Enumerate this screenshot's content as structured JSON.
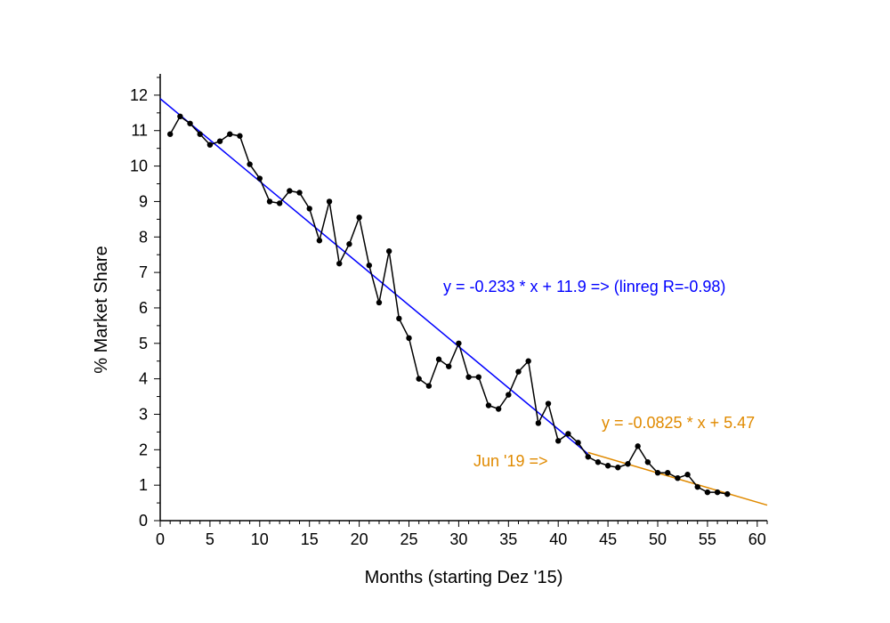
{
  "chart_data": {
    "type": "line",
    "title": "",
    "xlabel": "Months (starting Dez '15)",
    "ylabel": "% Market Share",
    "xlim": [
      0,
      61
    ],
    "ylim": [
      0,
      12.6
    ],
    "grid": false,
    "x_ticks": [
      0,
      5,
      10,
      15,
      20,
      25,
      30,
      35,
      40,
      45,
      50,
      55,
      60
    ],
    "y_ticks": [
      0,
      1,
      2,
      3,
      4,
      5,
      6,
      7,
      8,
      9,
      10,
      11,
      12
    ],
    "series": [
      {
        "name": "Market Share",
        "color": "#000000",
        "x": [
          1,
          2,
          3,
          4,
          5,
          6,
          7,
          8,
          9,
          10,
          11,
          12,
          13,
          14,
          15,
          16,
          17,
          18,
          19,
          20,
          21,
          22,
          23,
          24,
          25,
          26,
          27,
          28,
          29,
          30,
          31,
          32,
          33,
          34,
          35,
          36,
          37,
          38,
          39,
          40,
          41,
          42,
          43,
          44,
          45,
          46,
          47,
          48,
          49,
          50,
          51,
          52,
          53,
          54,
          55,
          56,
          57
        ],
        "values": [
          10.9,
          11.4,
          11.2,
          10.9,
          10.6,
          10.7,
          10.9,
          10.85,
          10.05,
          9.65,
          9.0,
          8.95,
          9.3,
          9.25,
          8.8,
          7.9,
          9.0,
          7.25,
          7.8,
          8.55,
          7.2,
          6.15,
          7.6,
          5.7,
          5.15,
          4.0,
          3.8,
          4.55,
          4.35,
          5.0,
          4.05,
          4.05,
          3.25,
          3.15,
          3.55,
          4.2,
          4.5,
          2.75,
          3.3,
          2.25,
          2.45,
          2.2,
          1.8,
          1.65,
          1.55,
          1.5,
          1.6,
          2.1,
          1.65,
          1.35,
          1.35,
          1.2,
          1.3,
          0.95,
          0.8,
          0.8,
          0.75
        ]
      }
    ],
    "regressions": [
      {
        "label": "y = -0.233 * x + 11.9 => (linreg R=-0.98)",
        "slope": -0.233,
        "intercept": 11.9,
        "x_range": [
          0,
          43
        ],
        "color": "#0000ff"
      },
      {
        "label": "y = -0.0825 * x + 5.47",
        "slope": -0.0825,
        "intercept": 5.47,
        "x_range": [
          43,
          61
        ],
        "color": "#e08a00"
      }
    ],
    "annotations": [
      {
        "text": "Jun '19 =>",
        "color": "#e08a00"
      }
    ]
  }
}
